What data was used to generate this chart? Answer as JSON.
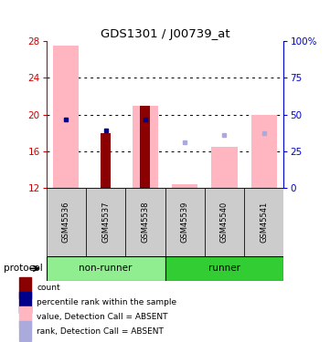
{
  "title": "GDS1301 / J00739_at",
  "samples": [
    "GSM45536",
    "GSM45537",
    "GSM45538",
    "GSM45539",
    "GSM45540",
    "GSM45541"
  ],
  "group_colors": {
    "non-runner": "#90EE90",
    "runner": "#32CD32"
  },
  "ylim_left": [
    12,
    28
  ],
  "ylim_right": [
    0,
    100
  ],
  "yticks_left": [
    12,
    16,
    20,
    24,
    28
  ],
  "yticks_right": [
    0,
    25,
    50,
    75,
    100
  ],
  "yticklabels_right": [
    "0",
    "25",
    "50",
    "75",
    "100%"
  ],
  "left_axis_color": "#CC0000",
  "right_axis_color": "#0000CC",
  "pink_bar_values": [
    27.5,
    12.0,
    21.0,
    12.4,
    16.5,
    20.0
  ],
  "pink_bar_color": "#FFB6C1",
  "red_bar_values": [
    12.0,
    18.0,
    21.0,
    12.0,
    12.0,
    12.0
  ],
  "red_bar_color": "#8B0000",
  "bar_bottom": 12,
  "blue_sq_x": [
    0,
    1,
    2,
    3,
    4,
    5
  ],
  "blue_sq_y": [
    19.5,
    18.3,
    19.5,
    17.0,
    17.8,
    18.0
  ],
  "blue_sq_dark": [
    true,
    true,
    true,
    false,
    false,
    false
  ],
  "dark_blue": "#00008B",
  "light_blue": "#AAAADD",
  "legend_items": [
    {
      "color": "#8B0000",
      "label": "count"
    },
    {
      "color": "#00008B",
      "label": "percentile rank within the sample"
    },
    {
      "color": "#FFB6C1",
      "label": "value, Detection Call = ABSENT"
    },
    {
      "color": "#AAAADD",
      "label": "rank, Detection Call = ABSENT"
    }
  ]
}
